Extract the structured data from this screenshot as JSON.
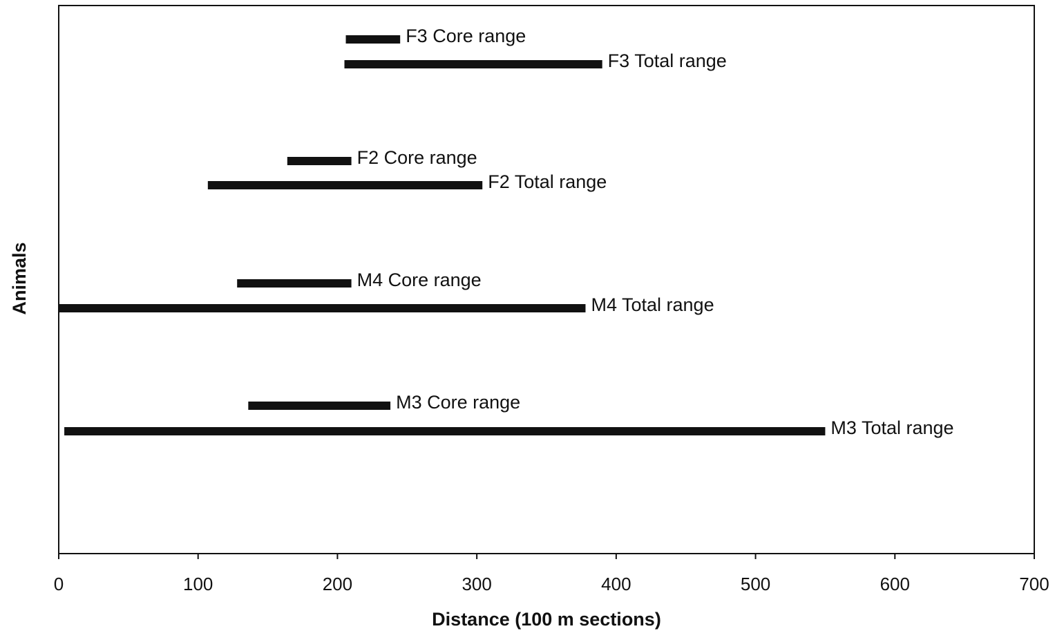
{
  "chart_data": {
    "type": "bar",
    "orientation": "horizontal-range",
    "xlabel": "Distance (100 m sections)",
    "ylabel": "Animals",
    "xlim": [
      0,
      700
    ],
    "x_ticks": [
      "0",
      "100",
      "200",
      "300",
      "400",
      "500",
      "600",
      "700"
    ],
    "grid": false,
    "legend": "none",
    "bar_color": "#111111",
    "ranges": [
      {
        "label": "F3 Core range",
        "start": 206,
        "end": 245
      },
      {
        "label": "F3 Total range",
        "start": 205,
        "end": 390
      },
      {
        "label": "F2 Core range",
        "start": 164,
        "end": 210
      },
      {
        "label": "F2 Total range",
        "start": 107,
        "end": 304
      },
      {
        "label": "M4 Core range",
        "start": 128,
        "end": 210
      },
      {
        "label": "M4 Total range",
        "start": 0,
        "end": 378
      },
      {
        "label": "M3 Core range",
        "start": 136,
        "end": 238
      },
      {
        "label": "M3 Total range",
        "start": 4,
        "end": 550
      }
    ]
  }
}
